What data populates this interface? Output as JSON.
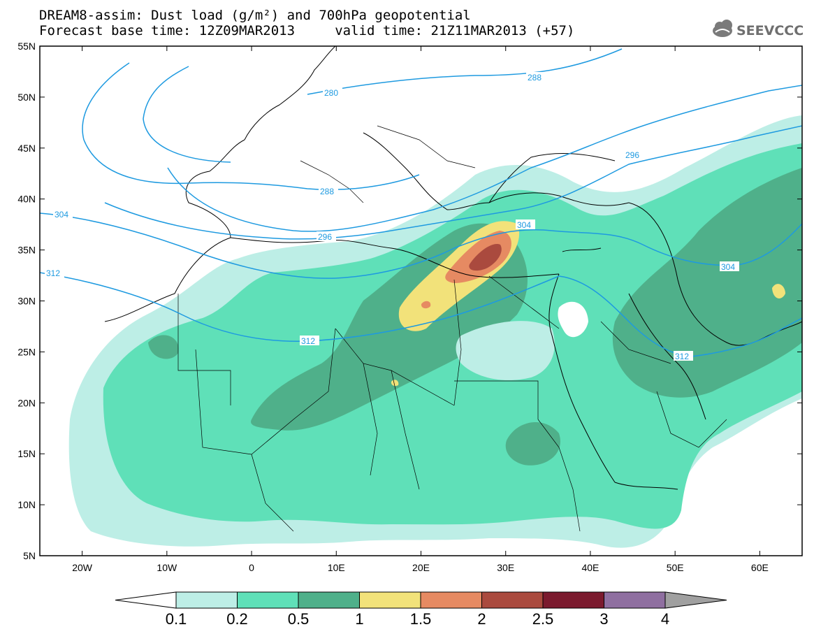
{
  "header": {
    "title_line1": "DREAM8-assim: Dust load (g/m²) and 700hPa geopotential",
    "title_line2": "Forecast base time: 12Z09MAR2013     valid time: 21Z11MAR2013 (+57)",
    "logo_text": "SEEVCCC"
  },
  "map": {
    "lat_labels": [
      "55N",
      "50N",
      "45N",
      "40N",
      "35N",
      "30N",
      "25N",
      "20N",
      "15N",
      "10N",
      "5N"
    ],
    "lat_values": [
      55,
      50,
      45,
      40,
      35,
      30,
      25,
      20,
      15,
      10,
      5
    ],
    "lon_labels": [
      "20W",
      "10W",
      "0",
      "10E",
      "20E",
      "30E",
      "40E",
      "50E",
      "60E"
    ],
    "lon_values": [
      -20,
      -10,
      0,
      10,
      20,
      30,
      40,
      50,
      60
    ],
    "extent": {
      "lon_min": -25,
      "lon_max": 65,
      "lat_min": 5,
      "lat_max": 55
    },
    "contour_labels": [
      "280",
      "288",
      "288",
      "296",
      "296",
      "304",
      "304",
      "304",
      "312",
      "312",
      "312"
    ]
  },
  "legend": {
    "levels": [
      "0.1",
      "0.2",
      "0.5",
      "1",
      "1.5",
      "2",
      "2.5",
      "3",
      "4"
    ],
    "colors": [
      "#ffffff",
      "#bdeee6",
      "#5fe0b8",
      "#4fb08a",
      "#f2e27a",
      "#e68a62",
      "#aa4a3e",
      "#7b1a2e",
      "#8f6fa0",
      "#a0a0a0"
    ]
  }
}
